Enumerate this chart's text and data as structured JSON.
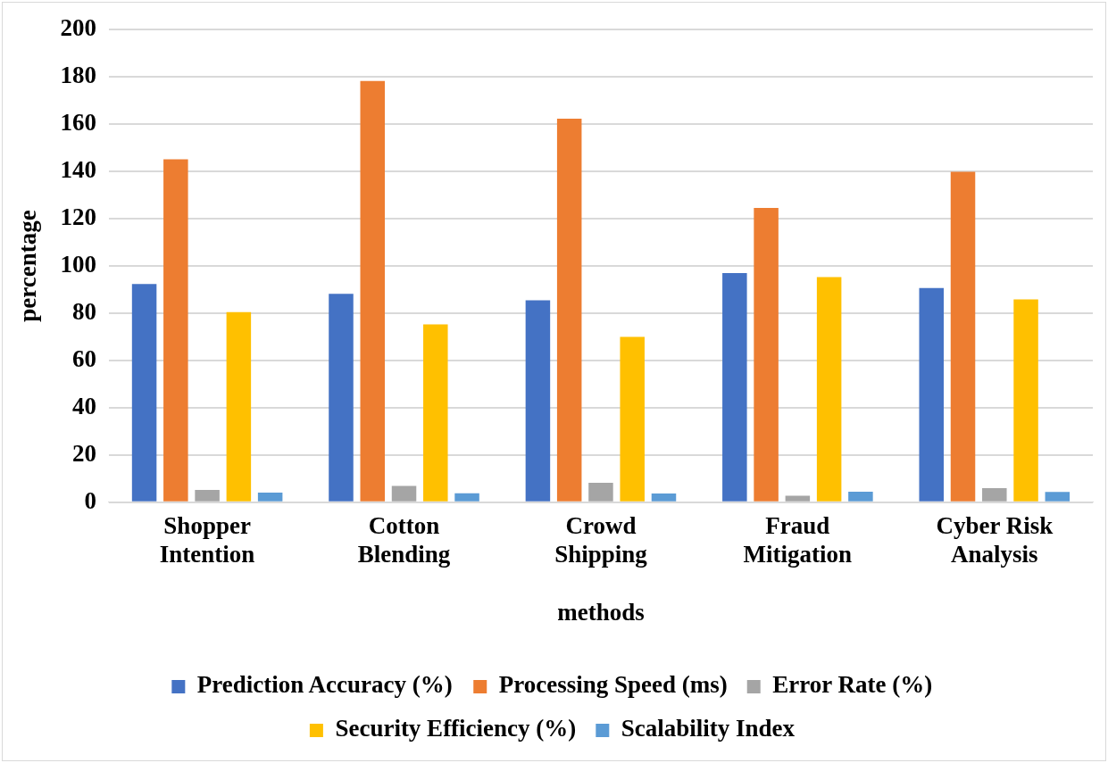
{
  "chart_data": {
    "type": "bar",
    "xlabel": "methods",
    "ylabel": "percentage",
    "categories": [
      "Shopper Intention",
      "Cotton Blending",
      "Crowd Shipping",
      "Fraud Mitigation",
      "Cyber Risk Analysis"
    ],
    "series": [
      {
        "name": "Prediction Accuracy (%)",
        "color": "#4472c4",
        "values": [
          92.4,
          88.2,
          85.5,
          97.0,
          90.7
        ]
      },
      {
        "name": "Processing Speed (ms)",
        "color": "#ed7d31",
        "values": [
          145.1,
          178.3,
          162.3,
          124.5,
          139.8
        ]
      },
      {
        "name": "Error Rate (%)",
        "color": "#a5a5a5",
        "values": [
          5.2,
          6.9,
          8.2,
          2.8,
          6.0
        ]
      },
      {
        "name": "Security Efficiency (%)",
        "color": "#ffc000",
        "values": [
          80.5,
          75.3,
          70.0,
          95.3,
          85.8
        ]
      },
      {
        "name": "Scalability Index",
        "color": "#5b9bd5",
        "values": [
          4.1,
          3.8,
          3.7,
          4.5,
          4.4
        ]
      }
    ],
    "ylim": [
      0,
      200
    ],
    "yticks": [
      0,
      20,
      40,
      60,
      80,
      100,
      120,
      140,
      160,
      180,
      200
    ],
    "grid": "y",
    "legend": "bottom"
  }
}
